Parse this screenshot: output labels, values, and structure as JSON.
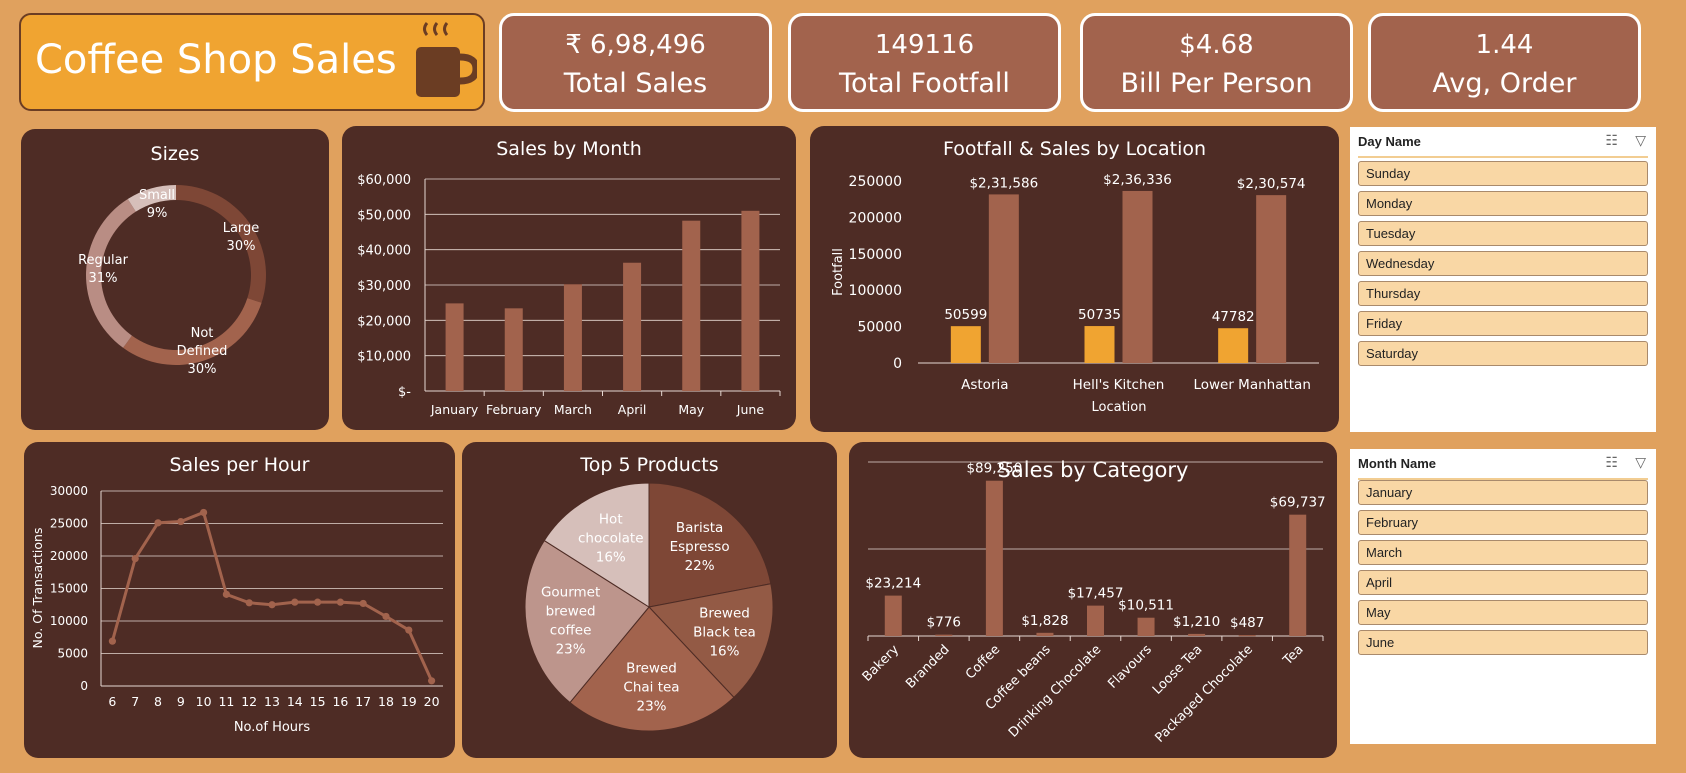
{
  "title": {
    "text": "Coffee Shop Sales",
    "icon": "coffee-cup-icon"
  },
  "kpis": [
    {
      "value": "₹ 6,98,496",
      "label": "Total Sales"
    },
    {
      "value": "149116",
      "label": "Total Footfall"
    },
    {
      "value": "$4.68",
      "label": "Bill Per Person"
    },
    {
      "value": "1.44",
      "label": "Avg, Order"
    }
  ],
  "colors": {
    "background": "#e0a15e",
    "panel": "#4e2c25",
    "bar": "#a2634d",
    "accent": "#f0a431",
    "title_box": "#f0a431",
    "slicer_item": "#f9d7a5"
  },
  "charts": {
    "sizes": {
      "title": "Sizes"
    },
    "month": {
      "title": "Sales by Month"
    },
    "location": {
      "title": "Footfall & Sales by Location",
      "ylabel": "Footfall",
      "xlabel": "Location"
    },
    "hour": {
      "title": "Sales per Hour",
      "ylabel": "No. Of Transactions",
      "xlabel": "No.of Hours"
    },
    "products": {
      "title": "Top 5 Products"
    },
    "category": {
      "title": "Sales by Category"
    }
  },
  "chart_data": [
    {
      "id": "sizes",
      "type": "donut",
      "title": "Sizes",
      "slices": [
        {
          "label": "Large",
          "value": 30,
          "pct": "30%",
          "color": "#7e4736"
        },
        {
          "label": "Not Defined",
          "value": 30,
          "pct": "30%",
          "color": "#a2634d"
        },
        {
          "label": "Regular",
          "value": 31,
          "pct": "31%",
          "color": "#b98d84"
        },
        {
          "label": "Small",
          "value": 9,
          "pct": "9%",
          "color": "#d6bfba"
        }
      ]
    },
    {
      "id": "month",
      "type": "bar",
      "title": "Sales by Month",
      "categories": [
        "January",
        "February",
        "March",
        "April",
        "May",
        "June"
      ],
      "values": [
        24800,
        23400,
        30200,
        36300,
        48200,
        51000
      ],
      "ylim": [
        0,
        60000
      ],
      "y_ticks": [
        "$-",
        "$10,000",
        "$20,000",
        "$30,000",
        "$40,000",
        "$50,000",
        "$60,000"
      ],
      "grid": true
    },
    {
      "id": "location",
      "type": "bar",
      "title": "Footfall & Sales by Location",
      "xlabel": "Location",
      "ylabel": "Footfall",
      "categories": [
        "Astoria",
        "Hell's Kitchen",
        "Lower Manhattan"
      ],
      "series": [
        {
          "values": [
            50599,
            50735,
            47782
          ],
          "labels": [
            "50599",
            "50735",
            "47782"
          ],
          "color": "#f0a431"
        },
        {
          "values": [
            231586,
            236336,
            230574
          ],
          "labels": [
            "$2,31,586",
            "$2,36,336",
            "$2,30,574"
          ],
          "color": "#a2634d"
        }
      ],
      "ylim": [
        0,
        250000
      ],
      "y_ticks": [
        "0",
        "50000",
        "100000",
        "150000",
        "200000",
        "250000"
      ],
      "grid": false
    },
    {
      "id": "hour",
      "type": "line",
      "title": "Sales per Hour",
      "xlabel": "No.of Hours",
      "ylabel": "No. Of Transactions",
      "x": [
        6,
        7,
        8,
        9,
        10,
        11,
        12,
        13,
        14,
        15,
        16,
        17,
        18,
        19,
        20
      ],
      "values": [
        6900,
        19600,
        25100,
        25300,
        26700,
        14100,
        12800,
        12500,
        12900,
        12900,
        12900,
        12700,
        10700,
        8600,
        800
      ],
      "ylim": [
        0,
        30000
      ],
      "y_ticks": [
        "0",
        "5000",
        "10000",
        "15000",
        "20000",
        "25000",
        "30000"
      ],
      "grid": true
    },
    {
      "id": "products",
      "type": "pie",
      "title": "Top 5 Products",
      "slices": [
        {
          "label": "Barista Espresso",
          "lines": [
            "Barista",
            "Espresso"
          ],
          "value": 22,
          "pct": "22%",
          "color": "#7e4736"
        },
        {
          "label": "Brewed Black tea",
          "lines": [
            "Brewed",
            "Black tea"
          ],
          "value": 16,
          "pct": "16%",
          "color": "#935a45"
        },
        {
          "label": "Brewed Chai tea",
          "lines": [
            "Brewed",
            "Chai tea"
          ],
          "value": 23,
          "pct": "23%",
          "color": "#a2634d"
        },
        {
          "label": "Gourmet brewed coffee",
          "lines": [
            "Gourmet",
            "brewed",
            "coffee"
          ],
          "value": 23,
          "pct": "23%",
          "color": "#bd958c"
        },
        {
          "label": "Hot chocolate",
          "lines": [
            "Hot",
            "chocolate"
          ],
          "value": 16,
          "pct": "16%",
          "color": "#d6bfba"
        }
      ]
    },
    {
      "id": "category",
      "type": "bar",
      "title": "Sales by Category",
      "categories": [
        "Bakery",
        "Branded",
        "Coffee",
        "Coffee beans",
        "Drinking Chocolate",
        "Flavours",
        "Loose Tea",
        "Packaged Chocolate",
        "Tea"
      ],
      "values": [
        23214,
        776,
        89250,
        1828,
        17457,
        10511,
        1210,
        487,
        69737
      ],
      "labels": [
        "$23,214",
        "$776",
        "$89,250",
        "$1,828",
        "$17,457",
        "$10,511",
        "$1,210",
        "$487",
        "$69,737"
      ],
      "ylim": [
        0,
        100000
      ],
      "grid": true
    }
  ],
  "slicers": [
    {
      "header": "Day Name",
      "items": [
        "Sunday",
        "Monday",
        "Tuesday",
        "Wednesday",
        "Thursday",
        "Friday",
        "Saturday"
      ]
    },
    {
      "header": "Month Name",
      "items": [
        "January",
        "February",
        "March",
        "April",
        "May",
        "June"
      ]
    }
  ]
}
